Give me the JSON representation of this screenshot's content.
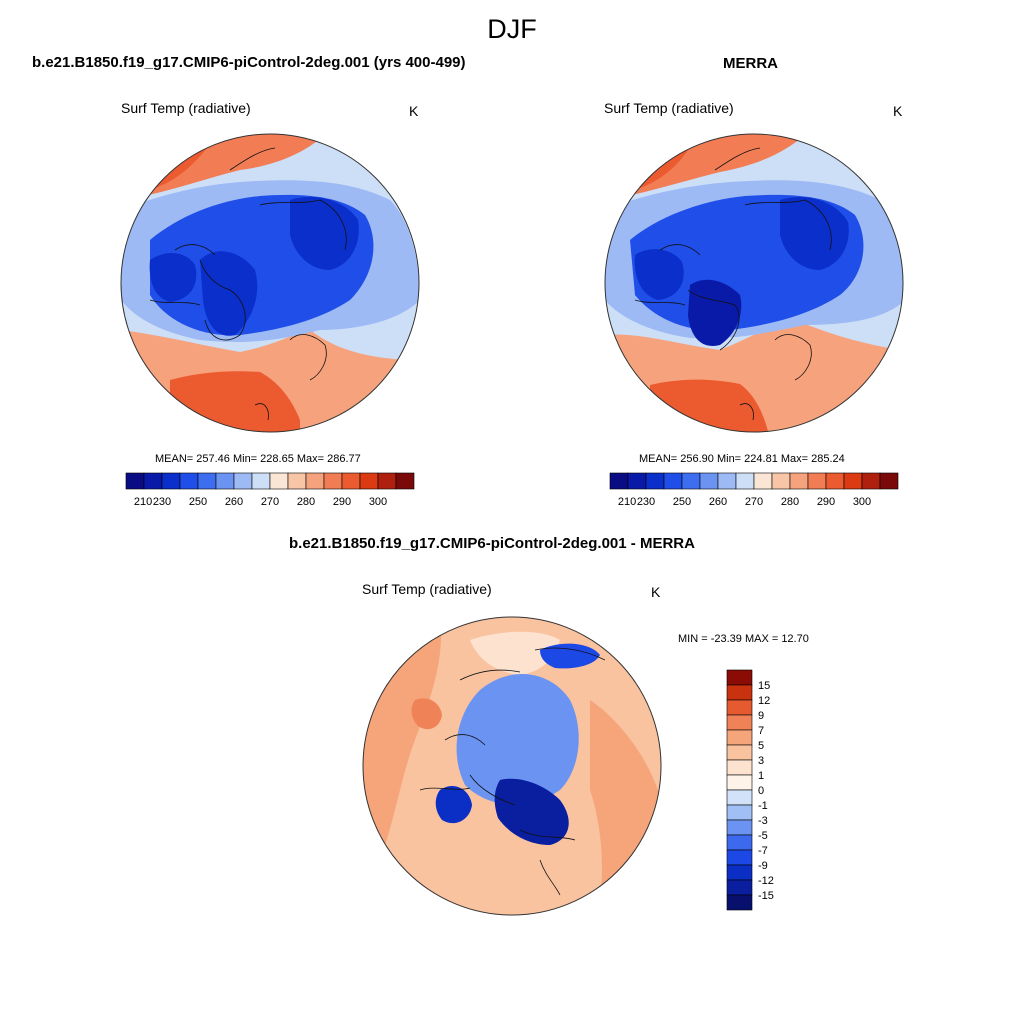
{
  "figure_title": "DJF",
  "colors": {
    "abs_scale": [
      "#0a0c84",
      "#0a1aa8",
      "#0b2fcb",
      "#1f4ee9",
      "#3e6ef0",
      "#6b93f2",
      "#9dbaf5",
      "#cddff7",
      "#fbe6d6",
      "#f8c5a6",
      "#f6a27c",
      "#f27d55",
      "#ec5a2f",
      "#db3a12",
      "#b0200e",
      "#7a0a0a"
    ],
    "diff_scale": [
      "#08106e",
      "#0a1ea0",
      "#0b2fc5",
      "#1c48e6",
      "#3d69ef",
      "#6b93f2",
      "#a0bff5",
      "#d2e3f9",
      "#fdf3e8",
      "#fde2cf",
      "#f9c3a0",
      "#f6a57a",
      "#f08258",
      "#e65a30",
      "#c8320f",
      "#8a0c05"
    ],
    "map_features": [
      "warm-ocean",
      "cool-band",
      "cold-arctic",
      "very-cold-greenland",
      "cold-siberia",
      "mid-latitude-ocean"
    ]
  },
  "panels": [
    {
      "id": "model",
      "title": "b.e21.B1850.f19_g17.CMIP6-piControl-2deg.001 (yrs 400-499)",
      "variable": "Surf Temp (radiative)",
      "units": "K",
      "stats": "MEAN= 257.46  Min= 228.65  Max= 286.77"
    },
    {
      "id": "obs",
      "title": "MERRA",
      "variable": "Surf Temp (radiative)",
      "units": "K",
      "stats": "MEAN= 256.90  Min= 224.81  Max= 285.24"
    },
    {
      "id": "diff",
      "title": "b.e21.B1850.f19_g17.CMIP6-piControl-2deg.001 - MERRA",
      "variable": "Surf Temp (radiative)",
      "units": "K",
      "stats": "MIN = -23.39 MAX =  12.70"
    }
  ],
  "chart_data": [
    {
      "type": "heatmap",
      "projection": "north-polar-stereographic",
      "title": "b.e21.B1850.f19_g17.CMIP6-piControl-2deg.001 (yrs 400-499)",
      "variable": "Surf Temp (radiative)",
      "units": "K",
      "mean": 257.46,
      "min": 228.65,
      "max": 286.77,
      "contour_levels": [
        205,
        210,
        215,
        220,
        225,
        230,
        235,
        240,
        245,
        250,
        255,
        260,
        265,
        270,
        275,
        280,
        285,
        290,
        295,
        300,
        305
      ],
      "colorbar_ticks": [
        "210",
        "230",
        "250",
        "260",
        "270",
        "280",
        "290",
        "300"
      ]
    },
    {
      "type": "heatmap",
      "projection": "north-polar-stereographic",
      "title": "MERRA",
      "variable": "Surf Temp (radiative)",
      "units": "K",
      "mean": 256.9,
      "min": 224.81,
      "max": 285.24,
      "contour_levels": [
        205,
        210,
        215,
        220,
        225,
        230,
        235,
        240,
        245,
        250,
        255,
        260,
        265,
        270,
        275,
        280,
        285,
        290,
        295,
        300,
        305
      ],
      "colorbar_ticks": [
        "210",
        "230",
        "250",
        "260",
        "270",
        "280",
        "290",
        "300"
      ]
    },
    {
      "type": "heatmap",
      "projection": "north-polar-stereographic",
      "title": "b.e21.B1850.f19_g17.CMIP6-piControl-2deg.001 - MERRA",
      "variable": "Surf Temp (radiative)",
      "units": "K",
      "min": -23.39,
      "max": 12.7,
      "contour_levels": [
        -15,
        -12,
        -9,
        -7,
        -5,
        -3,
        -1,
        0,
        1,
        3,
        5,
        7,
        9,
        12,
        15
      ],
      "colorbar_ticks": [
        "15",
        "12",
        "9",
        "7",
        "5",
        "3",
        "1",
        "0",
        "-1",
        "-3",
        "-5",
        "-7",
        "-9",
        "-12",
        "-15"
      ]
    }
  ]
}
